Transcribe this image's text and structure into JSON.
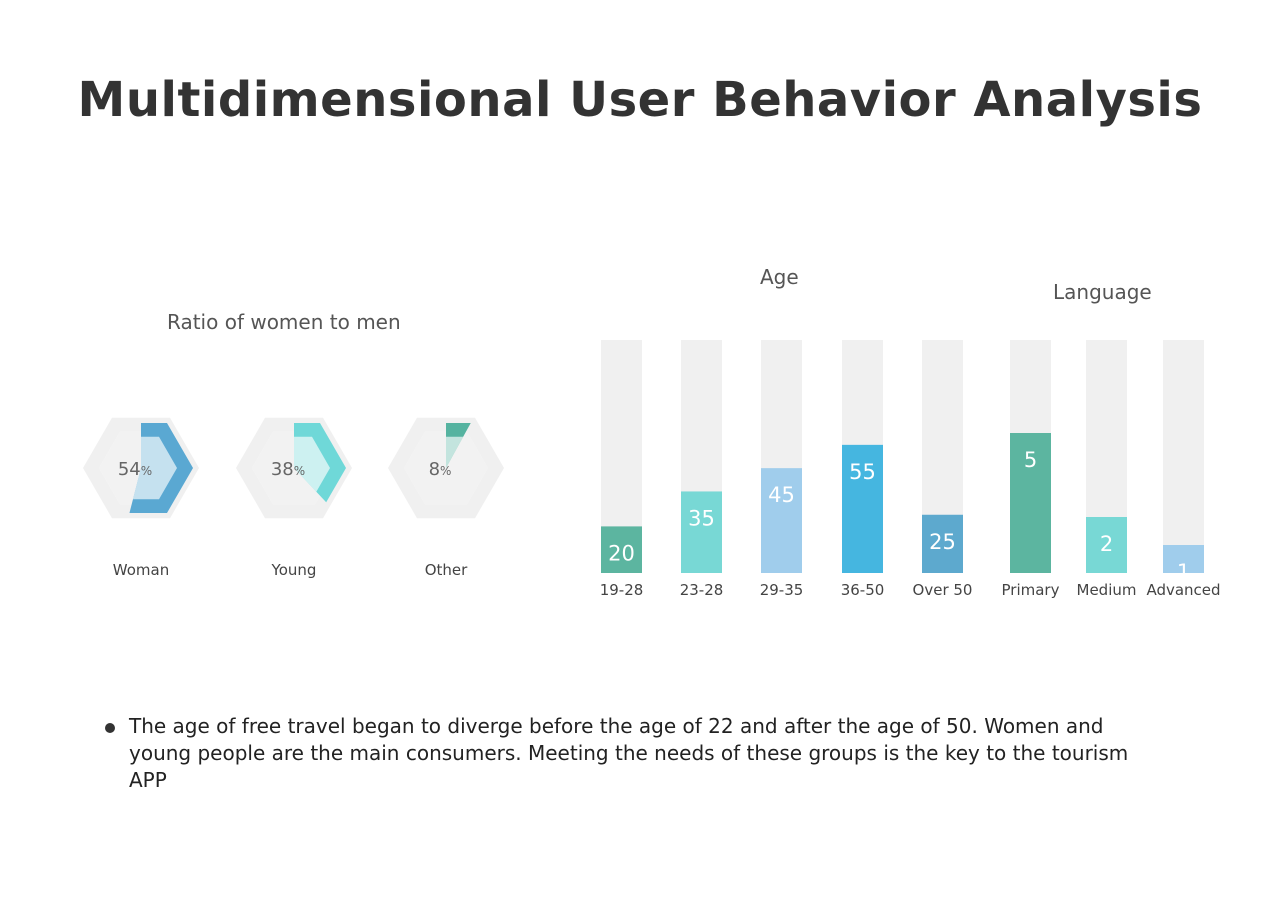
{
  "page": {
    "title": "Multidimensional User Behavior Analysis",
    "ratio_title": "Ratio of women to men",
    "age_title": "Age",
    "language_title": "Language",
    "note": "The age of free travel began to diverge before the age of 22 and after the age of 50. Women and young people are the main consumers. Meeting the needs of these groups is the key to the tourism APP"
  },
  "chart_data": [
    {
      "type": "pie",
      "title": "Ratio of women to men",
      "unit": "%",
      "slices": [
        {
          "label": "Woman",
          "value": 54,
          "color": "#5aa8d2"
        },
        {
          "label": "Young",
          "value": 38,
          "color": "#6fd8d8"
        },
        {
          "label": "Other",
          "value": 8,
          "color": "#55b3a0"
        }
      ]
    },
    {
      "type": "bar",
      "title": "Age",
      "categories": [
        "19-28",
        "23-28",
        "29-35",
        "36-50",
        "Over 50"
      ],
      "values": [
        20,
        35,
        45,
        55,
        25
      ],
      "colors": [
        "#5cb5a0",
        "#78d8d5",
        "#a0cdec",
        "#45b6e0",
        "#5da9ce"
      ],
      "ylim": [
        0,
        100
      ]
    },
    {
      "type": "bar",
      "title": "Language",
      "categories": [
        "Primary",
        "Medium",
        "Advanced"
      ],
      "values": [
        5,
        2,
        1
      ],
      "colors": [
        "#5cb5a0",
        "#78d8d5",
        "#a0cdec"
      ]
    }
  ]
}
